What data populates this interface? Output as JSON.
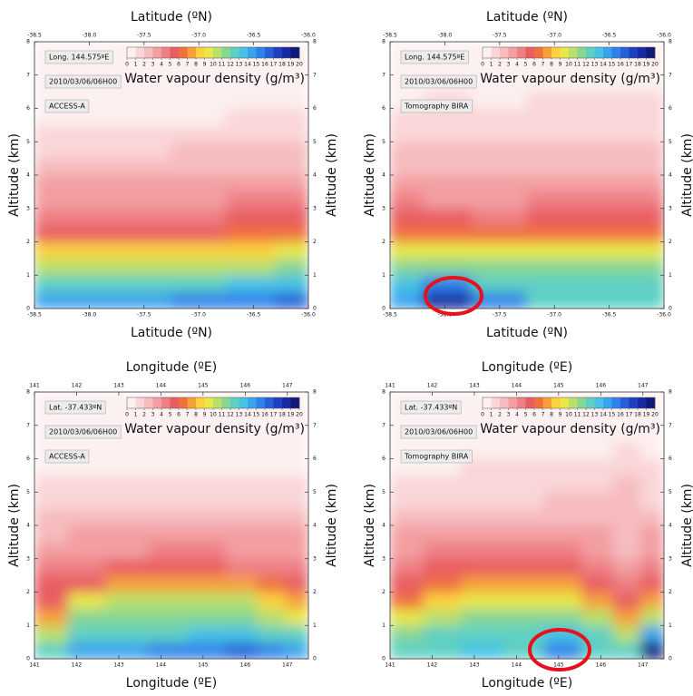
{
  "chart_data": [
    {
      "type": "contour",
      "xlabel": "Latitude (ºN)",
      "ylabel": "Altitude (km)",
      "annotations": [
        "Long. 144.575ºE",
        "2010/03/06/06H00",
        "ACCESS-A"
      ],
      "colorbar": {
        "label": "Water vapour density (g/m³)",
        "ticks": [
          0,
          1,
          2,
          3,
          4,
          5,
          6,
          7,
          8,
          9,
          10,
          11,
          12,
          13,
          14,
          15,
          16,
          17,
          18,
          19,
          20
        ],
        "colors": [
          "#fdf0f0",
          "#fad6d8",
          "#f6bcbe",
          "#f39fa2",
          "#ee7f83",
          "#e85d62",
          "#f0703f",
          "#f7a03a",
          "#fbd23d",
          "#e8e84a",
          "#b9e06a",
          "#86d694",
          "#5ed0c3",
          "#47c2e4",
          "#3aa3ee",
          "#2f82ea",
          "#2660d8",
          "#1d40c0",
          "#172aa0",
          "#101878"
        ]
      },
      "xlim": [
        -38.5,
        -36
      ],
      "xticks": [
        -38.5,
        {
          "value": -38,
          "label": "-38.0"
        },
        -37.5,
        {
          "value": -37,
          "label": "-37.0"
        },
        -36.5,
        {
          "value": -36,
          "label": "-36.0"
        }
      ],
      "ylim": [
        0,
        8
      ],
      "yticks": [
        0,
        1,
        2,
        3,
        4,
        5,
        6,
        7,
        8
      ],
      "x": [
        -38.4,
        -38.0,
        -37.5,
        -37.0,
        -36.5,
        -36.1
      ],
      "y": [
        0.25,
        0.75,
        1.25,
        1.75,
        2.25,
        2.75,
        3.25,
        3.75,
        4.25,
        4.75,
        5.25,
        5.75,
        6.25,
        6.75
      ],
      "z": [
        [
          14,
          14,
          14,
          15,
          15,
          16
        ],
        [
          12,
          12,
          12,
          12,
          13,
          13
        ],
        [
          10,
          10,
          10,
          10,
          10,
          11
        ],
        [
          8,
          8,
          8,
          8,
          8,
          9
        ],
        [
          5,
          5,
          5,
          5,
          6,
          6
        ],
        [
          4,
          4,
          4,
          4,
          5,
          5
        ],
        [
          3,
          3,
          3,
          3,
          4,
          4
        ],
        [
          3,
          3,
          3,
          3,
          3,
          3
        ],
        [
          2,
          2,
          2,
          2,
          2,
          2
        ],
        [
          1,
          1,
          1,
          2,
          2,
          2
        ],
        [
          1,
          1,
          1,
          1,
          1,
          1
        ],
        [
          0,
          0,
          0,
          0,
          1,
          1
        ],
        [
          0,
          0,
          0,
          0,
          0,
          0
        ],
        [
          0,
          0,
          0,
          0,
          0,
          0
        ]
      ]
    },
    {
      "type": "contour",
      "xlabel": "Latitude (ºN)",
      "ylabel": "Altitude (km)",
      "annotations": [
        "Long. 144.575ºE",
        "2010/03/06/06H00",
        "Tomography BIRA"
      ],
      "colorbar": {
        "label": "Water vapour density (g/m³)",
        "ticks": [
          0,
          1,
          2,
          3,
          4,
          5,
          6,
          7,
          8,
          9,
          10,
          11,
          12,
          13,
          14,
          15,
          16,
          17,
          18,
          19,
          20
        ],
        "colors": [
          "#fdf0f0",
          "#fad6d8",
          "#f6bcbe",
          "#f39fa2",
          "#ee7f83",
          "#e85d62",
          "#f0703f",
          "#f7a03a",
          "#fbd23d",
          "#e8e84a",
          "#b9e06a",
          "#86d694",
          "#5ed0c3",
          "#47c2e4",
          "#3aa3ee",
          "#2f82ea",
          "#2660d8",
          "#1d40c0",
          "#172aa0",
          "#101878"
        ]
      },
      "xlim": [
        -38.5,
        -36
      ],
      "xticks": [
        -38.5,
        {
          "value": -38,
          "label": "-38.0"
        },
        -37.5,
        {
          "value": -37,
          "label": "-37.0"
        },
        -36.5,
        {
          "value": -36,
          "label": "-36.0"
        }
      ],
      "ylim": [
        0,
        8
      ],
      "yticks": [
        0,
        1,
        2,
        3,
        4,
        5,
        6,
        7,
        8
      ],
      "x": [
        -38.4,
        -38.0,
        -37.5,
        -37.0,
        -36.5,
        -36.1
      ],
      "y": [
        0.25,
        0.75,
        1.25,
        1.75,
        2.25,
        2.75,
        3.25,
        3.75,
        4.25,
        4.75,
        5.25,
        5.75,
        6.25,
        6.75
      ],
      "z": [
        [
          14,
          18,
          15,
          12,
          12,
          12
        ],
        [
          13,
          15,
          12,
          12,
          12,
          12
        ],
        [
          11,
          11,
          11,
          11,
          11,
          11
        ],
        [
          9,
          9,
          9,
          9,
          9,
          9
        ],
        [
          6,
          6,
          6,
          6,
          6,
          6
        ],
        [
          5,
          5,
          4,
          5,
          5,
          5
        ],
        [
          4,
          3,
          3,
          4,
          4,
          4
        ],
        [
          3,
          3,
          3,
          3,
          3,
          3
        ],
        [
          2,
          2,
          2,
          2,
          2,
          2
        ],
        [
          2,
          2,
          2,
          2,
          2,
          2
        ],
        [
          1,
          1,
          1,
          1,
          1,
          1
        ],
        [
          1,
          1,
          1,
          1,
          1,
          1
        ],
        [
          0,
          1,
          0,
          1,
          1,
          1
        ],
        [
          0,
          0,
          0,
          0,
          0,
          0
        ]
      ]
    },
    {
      "type": "contour",
      "xlabel": "Longitude (ºE)",
      "ylabel": "Altitude (km)",
      "annotations": [
        "Lat. -37.433ºN",
        "2010/03/06/06H00",
        "ACCESS-A"
      ],
      "colorbar": {
        "label": "Water vapour density (g/m³)",
        "ticks": [
          0,
          1,
          2,
          3,
          4,
          5,
          6,
          7,
          8,
          9,
          10,
          11,
          12,
          13,
          14,
          15,
          16,
          17,
          18,
          19,
          20
        ],
        "colors": [
          "#fdf0f0",
          "#fad6d8",
          "#f6bcbe",
          "#f39fa2",
          "#ee7f83",
          "#e85d62",
          "#f0703f",
          "#f7a03a",
          "#fbd23d",
          "#e8e84a",
          "#b9e06a",
          "#86d694",
          "#5ed0c3",
          "#47c2e4",
          "#3aa3ee",
          "#2f82ea",
          "#2660d8",
          "#1d40c0",
          "#172aa0",
          "#101878"
        ]
      },
      "xlim": [
        141,
        147.5
      ],
      "xticks": [
        141,
        142,
        143,
        144,
        145,
        146,
        147
      ],
      "ylim": [
        0,
        8
      ],
      "yticks": [
        0,
        1,
        2,
        3,
        4,
        5,
        6,
        7,
        8
      ],
      "x": [
        141.4,
        142.2,
        143.2,
        144.2,
        145.1,
        146.0,
        146.6,
        147.3
      ],
      "y": [
        0.25,
        0.75,
        1.25,
        1.75,
        2.25,
        2.75,
        3.25,
        3.75,
        4.25,
        4.75,
        5.25,
        5.75,
        6.25,
        6.75
      ],
      "z": [
        [
          12,
          14,
          14,
          15,
          15,
          16,
          15,
          14
        ],
        [
          10,
          12,
          12,
          12,
          13,
          13,
          12,
          12
        ],
        [
          7,
          11,
          11,
          11,
          11,
          11,
          10,
          9
        ],
        [
          5,
          9,
          10,
          10,
          10,
          10,
          8,
          7
        ],
        [
          5,
          5,
          7,
          7,
          7,
          7,
          6,
          5
        ],
        [
          4,
          4,
          5,
          5,
          5,
          4,
          4,
          4
        ],
        [
          3,
          3,
          3,
          4,
          4,
          3,
          3,
          3
        ],
        [
          2,
          3,
          3,
          3,
          3,
          3,
          3,
          3
        ],
        [
          2,
          2,
          2,
          2,
          2,
          2,
          2,
          2
        ],
        [
          1,
          1,
          1,
          1,
          1,
          1,
          1,
          1
        ],
        [
          1,
          1,
          1,
          1,
          1,
          1,
          1,
          1
        ],
        [
          0,
          0,
          0,
          0,
          0,
          0,
          0,
          0
        ],
        [
          0,
          0,
          0,
          0,
          0,
          0,
          0,
          0
        ],
        [
          0,
          0,
          0,
          0,
          0,
          0,
          0,
          0
        ]
      ]
    },
    {
      "type": "contour",
      "xlabel": "Longitude (ºE)",
      "ylabel": "Altitude (km)",
      "annotations": [
        "Lat. -37.433ºN",
        "2010/03/06/06H00",
        "Tomography BIRA"
      ],
      "colorbar": {
        "label": "Water vapour density (g/m³)",
        "ticks": [
          0,
          1,
          2,
          3,
          4,
          5,
          6,
          7,
          8,
          9,
          10,
          11,
          12,
          13,
          14,
          15,
          16,
          17,
          18,
          19,
          20
        ],
        "colors": [
          "#fdf0f0",
          "#fad6d8",
          "#f6bcbe",
          "#f39fa2",
          "#ee7f83",
          "#e85d62",
          "#f0703f",
          "#f7a03a",
          "#fbd23d",
          "#e8e84a",
          "#b9e06a",
          "#86d694",
          "#5ed0c3",
          "#47c2e4",
          "#3aa3ee",
          "#2f82ea",
          "#2660d8",
          "#1d40c0",
          "#172aa0",
          "#101878"
        ]
      },
      "xlim": [
        141,
        147.5
      ],
      "xticks": [
        141,
        142,
        143,
        144,
        145,
        146,
        147
      ],
      "ylim": [
        0,
        8
      ],
      "yticks": [
        0,
        1,
        2,
        3,
        4,
        5,
        6,
        7,
        8
      ],
      "x": [
        141.4,
        142.2,
        143.2,
        144.2,
        145.1,
        146.0,
        146.6,
        147.3
      ],
      "y": [
        0.25,
        0.75,
        1.25,
        1.75,
        2.25,
        2.75,
        3.25,
        3.75,
        4.25,
        4.75,
        5.25,
        5.75,
        6.25,
        6.75
      ],
      "z": [
        [
          12,
          12,
          13,
          12,
          15,
          12,
          12,
          19
        ],
        [
          11,
          12,
          12,
          12,
          13,
          12,
          10,
          14
        ],
        [
          9,
          10,
          11,
          11,
          11,
          10,
          7,
          10
        ],
        [
          6,
          8,
          9,
          9,
          9,
          7,
          5,
          7
        ],
        [
          5,
          6,
          7,
          7,
          7,
          5,
          4,
          5
        ],
        [
          4,
          5,
          5,
          5,
          5,
          4,
          3,
          4
        ],
        [
          3,
          4,
          4,
          4,
          4,
          3,
          2,
          3
        ],
        [
          3,
          3,
          3,
          3,
          3,
          3,
          2,
          3
        ],
        [
          2,
          2,
          2,
          2,
          2,
          2,
          2,
          2
        ],
        [
          1,
          1,
          1,
          1,
          2,
          2,
          2,
          1
        ],
        [
          1,
          1,
          1,
          1,
          1,
          1,
          2,
          1
        ],
        [
          0,
          0,
          1,
          1,
          1,
          1,
          1,
          1
        ],
        [
          0,
          0,
          0,
          0,
          0,
          0,
          1,
          0
        ],
        [
          0,
          0,
          0,
          0,
          0,
          0,
          0,
          0
        ]
      ]
    }
  ]
}
